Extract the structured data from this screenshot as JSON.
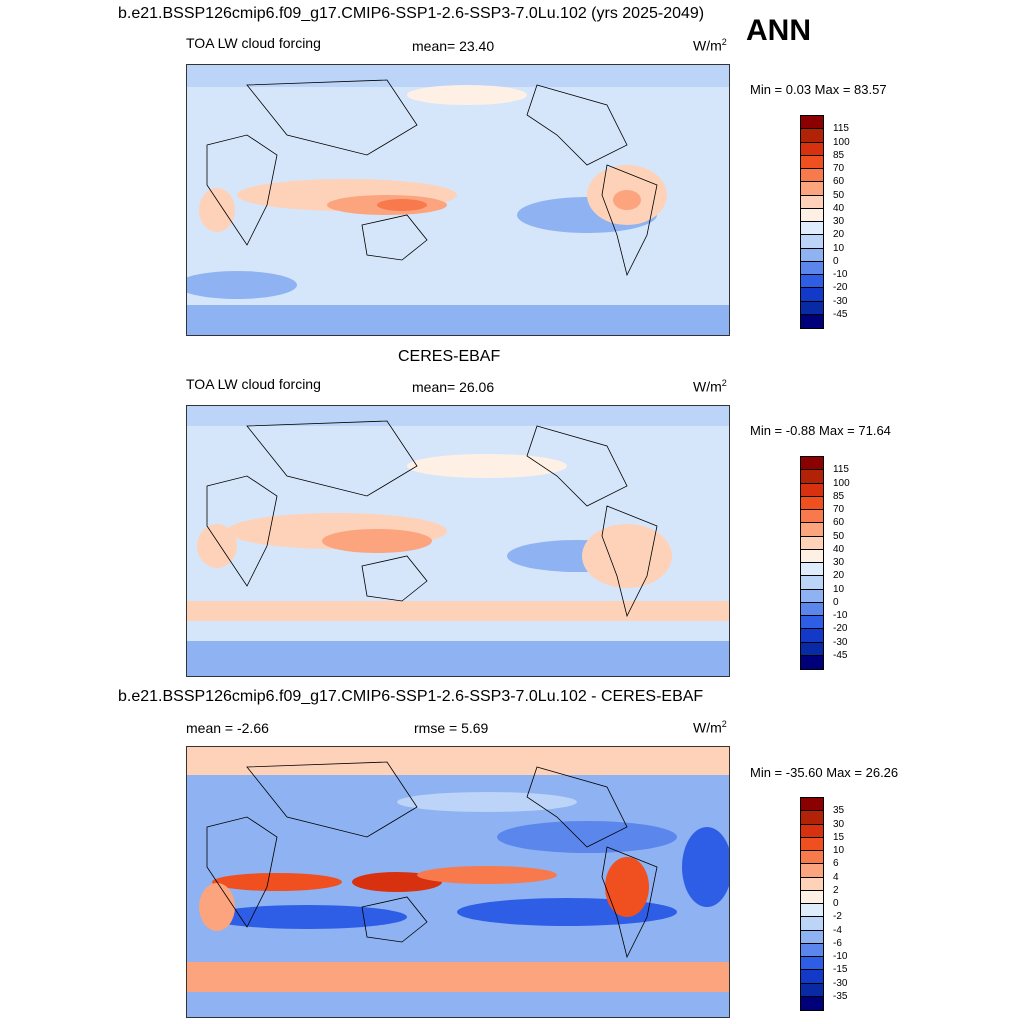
{
  "header": {
    "title": "b.e21.BSSP126cmip6.f09_g17.CMIP6-SSP1-2.6-SSP3-7.0Lu.102 (yrs 2025-2049)",
    "season": "ANN"
  },
  "panel1": {
    "variable": "TOA LW cloud forcing",
    "mean_label": "mean=  23.40",
    "units": "W/m",
    "units_exp": "2",
    "minmax": "Min =   0.03 Max =  83.57"
  },
  "panel2": {
    "title": "CERES-EBAF",
    "variable": "TOA LW cloud forcing",
    "mean_label": "mean=  26.06",
    "units": "W/m",
    "units_exp": "2",
    "minmax": "Min =  -0.88 Max =  71.64"
  },
  "panel3": {
    "title": "b.e21.BSSP126cmip6.f09_g17.CMIP6-SSP1-2.6-SSP3-7.0Lu.102 - CERES-EBAF",
    "mean_label": "mean =  -2.66",
    "rmse_label": "rmse =   5.69",
    "units": "W/m",
    "units_exp": "2",
    "minmax": "Min = -35.60 Max =  26.26"
  },
  "colorbar_abs": {
    "labels": [
      "115",
      "100",
      "85",
      "70",
      "60",
      "50",
      "40",
      "30",
      "20",
      "10",
      "0",
      "-10",
      "-20",
      "-30",
      "-45"
    ],
    "colors": [
      "#8b0000",
      "#b22206",
      "#d7310f",
      "#f05020",
      "#f87a4c",
      "#fba47e",
      "#fdd2b8",
      "#fff0e6",
      "#deecfb",
      "#bcd4f8",
      "#8eb2f2",
      "#5b86ec",
      "#2f5ee6",
      "#1239c8",
      "#082aa4",
      "#00007a"
    ]
  },
  "colorbar_diff": {
    "labels": [
      "35",
      "30",
      "15",
      "10",
      "6",
      "4",
      "2",
      "0",
      "-2",
      "-4",
      "-6",
      "-10",
      "-15",
      "-30",
      "-35"
    ],
    "colors": [
      "#8b0000",
      "#b22206",
      "#d7310f",
      "#f05020",
      "#f87a4c",
      "#fba47e",
      "#fdd2b8",
      "#fff0e6",
      "#deecfb",
      "#bcd4f8",
      "#8eb2f2",
      "#5b86ec",
      "#2f5ee6",
      "#1239c8",
      "#082aa4",
      "#00007a"
    ]
  }
}
